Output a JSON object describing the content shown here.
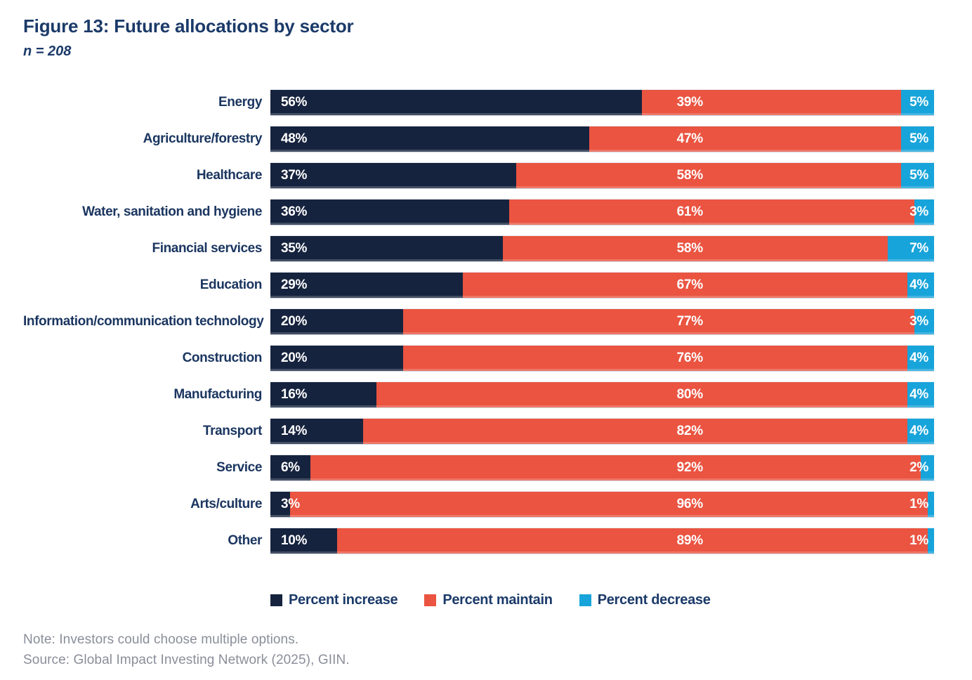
{
  "figure": {
    "title": "Figure 13: Future allocations by sector",
    "subtitle": "n = 208"
  },
  "chart_data": {
    "type": "bar",
    "subtype": "horizontal-stacked",
    "title": "Figure 13: Future allocations by sector",
    "sample_size_label": "n = 208",
    "xlim": [
      0,
      100
    ],
    "unit": "percent",
    "grid": false,
    "legend_position": "bottom",
    "categories": [
      "Energy",
      "Agriculture/forestry",
      "Healthcare",
      "Water, sanitation and hygiene",
      "Financial services",
      "Education",
      "Information/communication technology",
      "Construction",
      "Manufacturing",
      "Transport",
      "Service",
      "Arts/culture",
      "Other"
    ],
    "series": [
      {
        "name": "Percent increase",
        "color": "#16233e",
        "values": [
          56,
          48,
          37,
          36,
          35,
          29,
          20,
          20,
          16,
          14,
          6,
          3,
          10
        ],
        "labels": [
          "56%",
          "48%",
          "37%",
          "36%",
          "35%",
          "29%",
          "20%",
          "20%",
          "16%",
          "14%",
          "6%",
          "3%",
          "10%"
        ]
      },
      {
        "name": "Percent maintain",
        "color": "#ea5441",
        "values": [
          39,
          47,
          58,
          61,
          58,
          67,
          77,
          76,
          80,
          82,
          92,
          96,
          89
        ],
        "labels": [
          "39%",
          "47%",
          "58%",
          "61%",
          "58%",
          "67%",
          "77%",
          "76%",
          "80%",
          "82%",
          "92%",
          "96%",
          "89%"
        ]
      },
      {
        "name": "Percent decrease",
        "color": "#17a4da",
        "values": [
          5,
          5,
          5,
          3,
          7,
          4,
          3,
          4,
          4,
          4,
          2,
          1,
          1
        ],
        "labels": [
          "5%",
          "5%",
          "5%",
          "3%",
          "7%",
          "4%",
          "3%",
          "4%",
          "4%",
          "4%",
          "2%",
          "1%",
          "1%"
        ]
      }
    ]
  },
  "legend": {
    "items": [
      {
        "label": "Percent increase",
        "color": "#16233e"
      },
      {
        "label": "Percent maintain",
        "color": "#ea5441"
      },
      {
        "label": "Percent decrease",
        "color": "#17a4da"
      }
    ]
  },
  "footer": {
    "note": "Note: Investors could choose multiple options.",
    "source": "Source: Global Impact Investing Network (2025), GIIN."
  },
  "colors": {
    "increase_navy": "#16233e",
    "maintain_red": "#ea5441",
    "decrease_blue": "#17a4da",
    "heading_navy": "#1b3a69",
    "footer_gray": "#8a8e99",
    "background": "#ffffff"
  }
}
